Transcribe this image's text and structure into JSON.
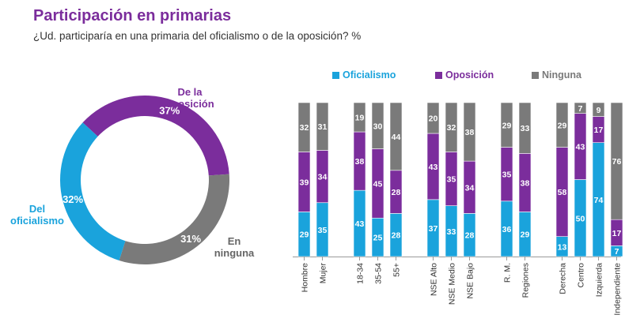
{
  "header": {
    "title": "Participación en primarias",
    "subtitle": "¿Ud. participaría en una primaria del oficialismo o de la oposición? %"
  },
  "colors": {
    "oficialismo": "#1aa3dc",
    "oposicion": "#7b2d9c",
    "ninguna": "#7a7a7a"
  },
  "chart_data": [
    {
      "type": "pie",
      "donut": true,
      "slices": [
        {
          "key": "oposicion",
          "label": "De la oposición",
          "label_lines": [
            "De la",
            "oposición"
          ],
          "value": 37,
          "value_label": "37%"
        },
        {
          "key": "ninguna",
          "label": "En ninguna",
          "label_lines": [
            "En",
            "ninguna"
          ],
          "value": 31,
          "value_label": "31%"
        },
        {
          "key": "oficialismo",
          "label": "Del oficialismo",
          "label_lines": [
            "Del",
            "oficialismo"
          ],
          "value": 32,
          "value_label": "32%"
        }
      ]
    },
    {
      "type": "bar",
      "stacked": true,
      "legend": [
        {
          "key": "oficialismo",
          "label": "Oficialismo"
        },
        {
          "key": "oposicion",
          "label": "Oposición"
        },
        {
          "key": "ninguna",
          "label": "Ninguna"
        }
      ],
      "categories": [
        "Hombre",
        "Mujer",
        "18-34",
        "35-54",
        "55+",
        "NSE Alto",
        "NSE Medio",
        "NSE Bajo",
        "R. M.",
        "Regiones",
        "Derecha",
        "Centro",
        "Izquierda",
        "Independiente"
      ],
      "groups": [
        2,
        3,
        3,
        2,
        4
      ],
      "series": [
        {
          "key": "oficialismo",
          "name": "Oficialismo",
          "values": [
            29,
            35,
            43,
            25,
            28,
            37,
            33,
            28,
            36,
            29,
            13,
            50,
            74,
            7
          ]
        },
        {
          "key": "oposicion",
          "name": "Oposición",
          "values": [
            39,
            34,
            38,
            45,
            28,
            43,
            35,
            34,
            35,
            38,
            58,
            43,
            17,
            17
          ]
        },
        {
          "key": "ninguna",
          "name": "Ninguna",
          "values": [
            32,
            31,
            19,
            30,
            44,
            20,
            32,
            38,
            29,
            33,
            29,
            7,
            9,
            76
          ]
        }
      ],
      "ylim": [
        0,
        100
      ]
    }
  ]
}
